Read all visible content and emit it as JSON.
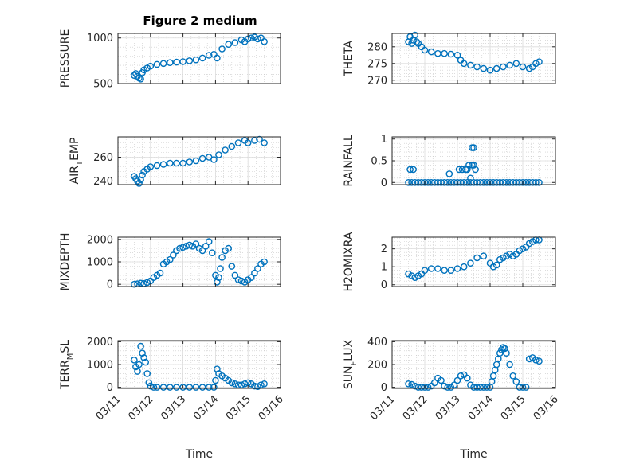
{
  "figure": {
    "title": "Figure 2 medium",
    "marker_color": "#0072BD",
    "axis_color": "#262626",
    "grid_color": "#c8c8c8"
  },
  "x_axis": {
    "ticks": [
      "03/11",
      "03/12",
      "03/13",
      "03/14",
      "03/15",
      "03/16"
    ],
    "label": "Time",
    "range_days": [
      11,
      16
    ]
  },
  "chart_data": [
    {
      "type": "scatter",
      "title": "Figure 2 medium",
      "ylabel_parts": [
        "PRESSURE"
      ],
      "ylim": [
        500,
        1050
      ],
      "yticks": [
        500,
        1000
      ],
      "ytick_labels": [
        "500",
        "1000"
      ],
      "series": [
        {
          "x": [
            11.5,
            11.55,
            11.6,
            11.65,
            11.7,
            11.75,
            11.8,
            11.9,
            12.0,
            12.2,
            12.4,
            12.6,
            12.8,
            13.0,
            13.2,
            13.4,
            13.6,
            13.8,
            13.95,
            14.05,
            14.2,
            14.4,
            14.6,
            14.8,
            14.9,
            15.0,
            15.1,
            15.2,
            15.3,
            15.4,
            15.5
          ],
          "y": [
            590,
            610,
            580,
            560,
            550,
            620,
            650,
            670,
            690,
            710,
            720,
            730,
            735,
            740,
            750,
            760,
            780,
            810,
            820,
            780,
            880,
            930,
            950,
            980,
            960,
            990,
            1000,
            1010,
            990,
            1000,
            960
          ]
        }
      ]
    },
    {
      "type": "scatter",
      "ylabel_parts": [
        "THETA"
      ],
      "ylim": [
        269,
        284
      ],
      "yticks": [
        270,
        275,
        280
      ],
      "ytick_labels": [
        "270",
        "275",
        "280"
      ],
      "series": [
        {
          "x": [
            11.5,
            11.55,
            11.6,
            11.65,
            11.7,
            11.75,
            11.8,
            11.9,
            12.0,
            12.2,
            12.4,
            12.6,
            12.8,
            13.0,
            13.1,
            13.2,
            13.4,
            13.6,
            13.8,
            14.0,
            14.2,
            14.4,
            14.6,
            14.8,
            15.0,
            15.2,
            15.3,
            15.4,
            15.5
          ],
          "y": [
            281.5,
            283,
            281,
            282,
            283.5,
            281.5,
            281,
            280,
            279,
            278.5,
            278,
            278,
            277.8,
            277.5,
            276,
            275,
            274.5,
            274,
            273.5,
            273,
            273.5,
            274,
            274.5,
            275,
            274,
            273.5,
            274,
            275,
            275.5
          ]
        }
      ]
    },
    {
      "type": "scatter",
      "ylabel_parts": [
        "AIR",
        "T",
        "EMP"
      ],
      "ylim": [
        237,
        277
      ],
      "yticks": [
        240,
        260
      ],
      "ytick_labels": [
        "240",
        "260"
      ],
      "series": [
        {
          "x": [
            11.5,
            11.55,
            11.6,
            11.65,
            11.7,
            11.75,
            11.8,
            11.9,
            12.0,
            12.2,
            12.4,
            12.6,
            12.8,
            13.0,
            13.2,
            13.4,
            13.6,
            13.8,
            13.95,
            14.1,
            14.3,
            14.5,
            14.7,
            14.9,
            15.0,
            15.2,
            15.35,
            15.5
          ],
          "y": [
            244,
            242,
            240,
            238,
            241,
            245,
            248,
            250,
            252,
            253,
            254,
            255,
            255,
            255,
            256,
            257,
            259,
            260,
            258,
            262,
            266,
            269,
            272,
            274,
            272,
            274,
            275,
            272
          ]
        }
      ]
    },
    {
      "type": "scatter",
      "ylabel_parts": [
        "RAINFALL"
      ],
      "ylim": [
        -0.05,
        1.05
      ],
      "yticks": [
        0,
        0.5,
        1
      ],
      "ytick_labels": [
        "0",
        "0.5",
        "1"
      ],
      "series": [
        {
          "x": [
            11.5,
            11.6,
            11.7,
            11.8,
            11.9,
            12.0,
            12.1,
            12.2,
            12.3,
            12.4,
            12.5,
            12.6,
            12.7,
            12.8,
            12.9,
            13.0,
            13.1,
            13.2,
            13.3,
            13.4,
            13.5,
            13.6,
            13.7,
            13.8,
            13.9,
            14.0,
            14.1,
            14.2,
            14.3,
            14.4,
            14.5,
            14.6,
            14.7,
            14.8,
            14.9,
            15.0,
            15.1,
            15.2,
            15.3,
            15.4,
            15.5,
            11.55,
            11.65,
            12.75,
            13.05,
            13.15,
            13.25,
            13.3,
            13.35,
            13.45,
            13.5,
            13.55,
            13.4,
            13.45,
            13.5
          ],
          "y": [
            0,
            0,
            0,
            0,
            0,
            0,
            0,
            0,
            0,
            0,
            0,
            0,
            0,
            0,
            0,
            0,
            0,
            0,
            0,
            0,
            0,
            0,
            0,
            0,
            0,
            0,
            0,
            0,
            0,
            0,
            0,
            0,
            0,
            0,
            0,
            0,
            0,
            0,
            0,
            0,
            0,
            0.3,
            0.3,
            0.2,
            0.3,
            0.3,
            0.3,
            0.3,
            0.4,
            0.4,
            0.4,
            0.3,
            0.1,
            0.8,
            0.8
          ]
        }
      ]
    },
    {
      "type": "scatter",
      "ylabel_parts": [
        "MIXDEPTH"
      ],
      "ylim": [
        -100,
        2100
      ],
      "yticks": [
        0,
        1000,
        2000
      ],
      "ytick_labels": [
        "0",
        "1000",
        "2000"
      ],
      "series": [
        {
          "x": [
            11.5,
            11.6,
            11.7,
            11.8,
            11.9,
            12.0,
            12.1,
            12.2,
            12.3,
            12.4,
            12.5,
            12.6,
            12.7,
            12.8,
            12.9,
            13.0,
            13.1,
            13.2,
            13.3,
            13.4,
            13.5,
            13.6,
            13.7,
            13.8,
            13.9,
            14.0,
            14.05,
            14.1,
            14.15,
            14.2,
            14.3,
            14.4,
            14.5,
            14.6,
            14.7,
            14.8,
            14.9,
            15.0,
            15.1,
            15.2,
            15.3,
            15.4,
            15.5
          ],
          "y": [
            0,
            20,
            50,
            30,
            80,
            150,
            300,
            400,
            500,
            900,
            1000,
            1100,
            1300,
            1500,
            1600,
            1650,
            1700,
            1750,
            1700,
            1800,
            1600,
            1500,
            1700,
            1900,
            1400,
            400,
            100,
            300,
            700,
            1200,
            1500,
            1600,
            800,
            400,
            200,
            150,
            100,
            200,
            300,
            500,
            700,
            900,
            1000
          ]
        }
      ]
    },
    {
      "type": "scatter",
      "ylabel_parts": [
        "H2OMIXRA"
      ],
      "ylim": [
        -0.1,
        2.65
      ],
      "yticks": [
        0,
        1,
        2
      ],
      "ytick_labels": [
        "0",
        "1",
        "2"
      ],
      "series": [
        {
          "x": [
            11.5,
            11.6,
            11.7,
            11.8,
            11.9,
            12.0,
            12.2,
            12.4,
            12.6,
            12.8,
            13.0,
            13.2,
            13.4,
            13.6,
            13.8,
            14.0,
            14.1,
            14.2,
            14.3,
            14.4,
            14.5,
            14.6,
            14.7,
            14.8,
            14.9,
            15.0,
            15.1,
            15.2,
            15.3,
            15.4,
            15.5
          ],
          "y": [
            0.6,
            0.5,
            0.4,
            0.5,
            0.6,
            0.8,
            0.9,
            0.9,
            0.8,
            0.8,
            0.9,
            1.0,
            1.2,
            1.5,
            1.6,
            1.2,
            1.0,
            1.1,
            1.4,
            1.5,
            1.6,
            1.7,
            1.6,
            1.7,
            1.9,
            2.0,
            2.1,
            2.3,
            2.4,
            2.5,
            2.5
          ]
        }
      ]
    },
    {
      "type": "scatter",
      "ylabel_parts": [
        "TERR",
        "M",
        "SL"
      ],
      "ylim": [
        -50,
        2050
      ],
      "yticks": [
        0,
        1000,
        2000
      ],
      "ytick_labels": [
        "0",
        "1000",
        "2000"
      ],
      "series": [
        {
          "x": [
            11.5,
            11.55,
            11.6,
            11.65,
            11.7,
            11.75,
            11.8,
            11.85,
            11.9,
            11.95,
            12.0,
            12.1,
            12.2,
            12.4,
            12.6,
            12.8,
            13.0,
            13.2,
            13.4,
            13.6,
            13.8,
            13.95,
            14.0,
            14.05,
            14.1,
            14.2,
            14.3,
            14.4,
            14.5,
            14.6,
            14.7,
            14.8,
            14.9,
            15.0,
            15.1,
            15.2,
            15.3,
            15.4,
            15.5
          ],
          "y": [
            1200,
            900,
            700,
            1000,
            1800,
            1500,
            1300,
            1100,
            600,
            200,
            50,
            0,
            0,
            0,
            0,
            0,
            0,
            0,
            0,
            0,
            0,
            0,
            300,
            800,
            600,
            500,
            400,
            300,
            200,
            150,
            100,
            100,
            150,
            200,
            150,
            50,
            30,
            100,
            150
          ]
        }
      ]
    },
    {
      "type": "scatter",
      "ylabel_parts": [
        "SUN",
        "F",
        "LUX"
      ],
      "ylim": [
        -10,
        410
      ],
      "yticks": [
        0,
        200,
        400
      ],
      "ytick_labels": [
        "0",
        "200",
        "400"
      ],
      "series": [
        {
          "x": [
            11.5,
            11.6,
            11.7,
            11.8,
            11.9,
            12.0,
            12.1,
            12.2,
            12.3,
            12.4,
            12.5,
            12.6,
            12.7,
            12.8,
            12.9,
            13.0,
            13.1,
            13.2,
            13.3,
            13.4,
            13.5,
            13.6,
            13.7,
            13.8,
            13.9,
            14.0,
            14.05,
            14.1,
            14.15,
            14.2,
            14.25,
            14.3,
            14.35,
            14.4,
            14.45,
            14.5,
            14.6,
            14.7,
            14.8,
            14.9,
            15.0,
            15.1,
            15.2,
            15.3,
            15.4,
            15.5
          ],
          "y": [
            30,
            25,
            10,
            0,
            0,
            0,
            0,
            10,
            40,
            80,
            60,
            10,
            0,
            0,
            20,
            60,
            100,
            110,
            80,
            20,
            0,
            0,
            0,
            0,
            0,
            0,
            50,
            100,
            150,
            200,
            250,
            300,
            330,
            350,
            340,
            300,
            200,
            100,
            50,
            0,
            0,
            0,
            250,
            260,
            240,
            230
          ]
        }
      ]
    }
  ]
}
